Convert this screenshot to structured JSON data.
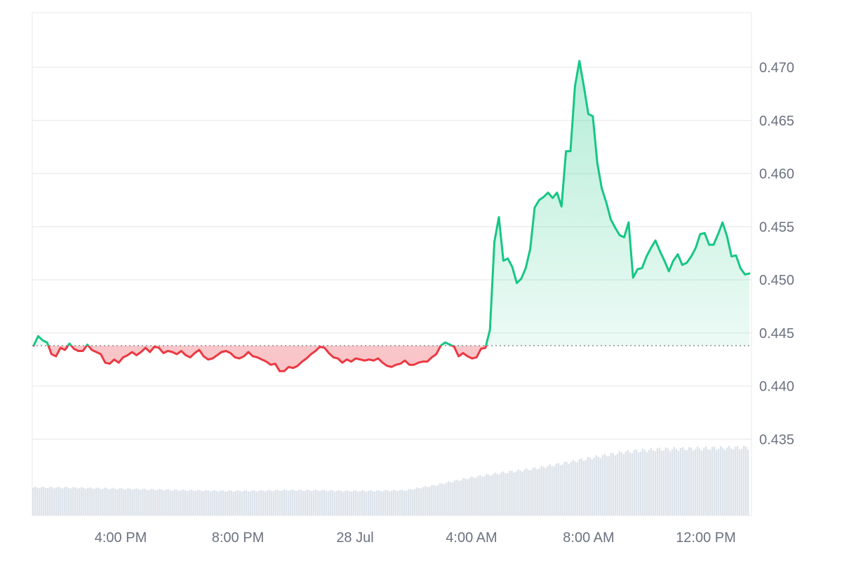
{
  "chart_data": {
    "type": "line",
    "title": "",
    "xlabel": "",
    "ylabel": "",
    "x_ticks": [
      "4:00 PM",
      "8:00 PM",
      "28 Jul",
      "4:00 AM",
      "8:00 AM",
      "12:00 PM"
    ],
    "y_ticks": [
      "0.435",
      "0.440",
      "0.445",
      "0.450",
      "0.455",
      "0.460",
      "0.465",
      "0.470"
    ],
    "ylim": [
      0.4293,
      0.4753
    ],
    "baseline": 0.4438,
    "grid": true,
    "colors": {
      "above": "#16c784",
      "below": "#ea3943",
      "grid": "#eeeeee",
      "volume": "#dde3ea"
    },
    "series": [
      {
        "values": [
          0.4438,
          0.4447,
          0.4443,
          0.4441,
          0.443,
          0.4428,
          0.4436,
          0.4434,
          0.444,
          0.4435,
          0.4433,
          0.4433,
          0.4439,
          0.4434,
          0.4432,
          0.443,
          0.4422,
          0.4421,
          0.4425,
          0.4422,
          0.4427,
          0.4429,
          0.4432,
          0.4429,
          0.4432,
          0.4436,
          0.4432,
          0.4437,
          0.4436,
          0.4431,
          0.4433,
          0.4432,
          0.443,
          0.4433,
          0.4429,
          0.4427,
          0.4431,
          0.4434,
          0.4428,
          0.4425,
          0.4426,
          0.4429,
          0.4432,
          0.4433,
          0.4431,
          0.4427,
          0.4426,
          0.4428,
          0.4432,
          0.4428,
          0.4427,
          0.4425,
          0.4423,
          0.442,
          0.4421,
          0.4414,
          0.4414,
          0.4418,
          0.4417,
          0.4419,
          0.4423,
          0.4426,
          0.443,
          0.4433,
          0.4437,
          0.4436,
          0.4431,
          0.4427,
          0.4426,
          0.4422,
          0.4425,
          0.4423,
          0.4426,
          0.4425,
          0.4424,
          0.4425,
          0.4424,
          0.4426,
          0.4422,
          0.4419,
          0.4418,
          0.442,
          0.4421,
          0.4424,
          0.442,
          0.442,
          0.4422,
          0.4423,
          0.4423,
          0.4427,
          0.443,
          0.4438,
          0.4441,
          0.4439,
          0.4437,
          0.4428,
          0.4431,
          0.4428,
          0.4426,
          0.4427,
          0.4435,
          0.4436,
          0.4453,
          0.4536,
          0.4559,
          0.4518,
          0.452,
          0.4512,
          0.4497,
          0.4501,
          0.4511,
          0.4529,
          0.4568,
          0.4575,
          0.4578,
          0.4582,
          0.4577,
          0.4582,
          0.4569,
          0.4621,
          0.4621,
          0.4682,
          0.4706,
          0.4682,
          0.4656,
          0.4654,
          0.461,
          0.4586,
          0.4573,
          0.4557,
          0.4549,
          0.4542,
          0.454,
          0.4554,
          0.4502,
          0.451,
          0.4511,
          0.4522,
          0.453,
          0.4537,
          0.4527,
          0.4518,
          0.4508,
          0.4518,
          0.4524,
          0.4514,
          0.4516,
          0.4522,
          0.453,
          0.4543,
          0.4544,
          0.4533,
          0.4533,
          0.4543,
          0.4554,
          0.4541,
          0.4522,
          0.4523,
          0.4511,
          0.4505,
          0.4506
        ]
      }
    ],
    "volume_levels": [
      0.41,
      0.41,
      0.4,
      0.39,
      0.38,
      0.37,
      0.36,
      0.36,
      0.37,
      0.37,
      0.36,
      0.36,
      0.37,
      0.45,
      0.55,
      0.62,
      0.68,
      0.76,
      0.85,
      0.93,
      0.97,
      0.98,
      0.99,
      1.0
    ]
  }
}
